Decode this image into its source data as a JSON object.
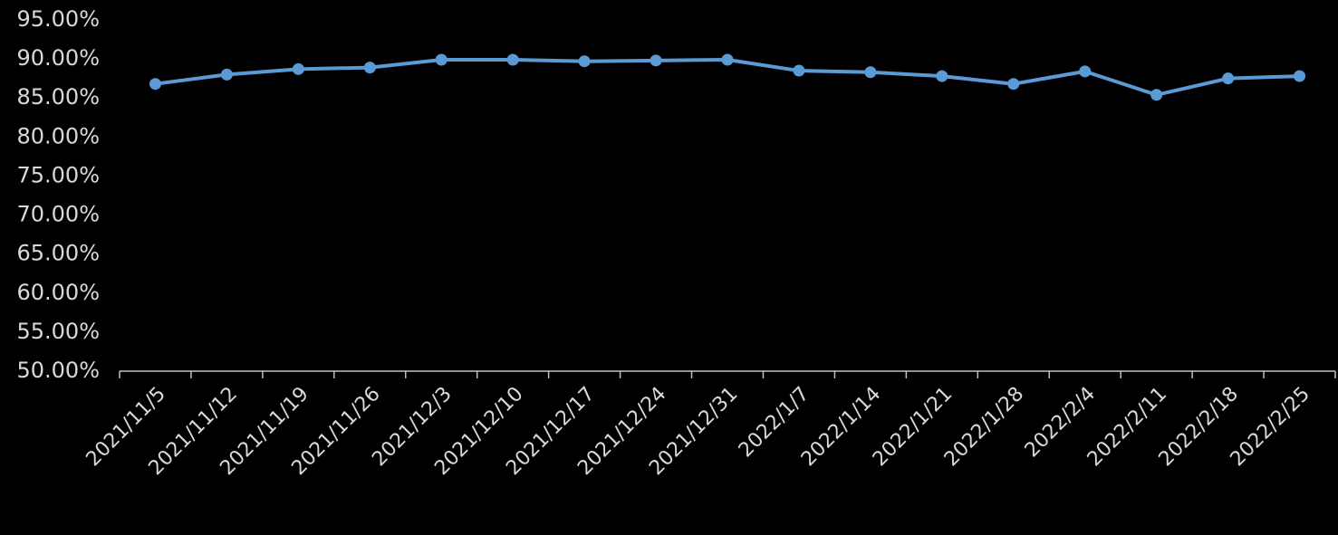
{
  "chart_data": {
    "type": "line",
    "categories": [
      "2021/11/5",
      "2021/11/12",
      "2021/11/19",
      "2021/11/26",
      "2021/12/3",
      "2021/12/10",
      "2021/12/17",
      "2021/12/24",
      "2021/12/31",
      "2022/1/7",
      "2022/1/14",
      "2022/1/21",
      "2022/1/28",
      "2022/2/4",
      "2022/2/11",
      "2022/2/18",
      "2022/2/25"
    ],
    "values": [
      86.8,
      88.0,
      88.7,
      88.9,
      89.9,
      89.9,
      89.7,
      89.8,
      89.9,
      88.5,
      88.3,
      87.8,
      86.8,
      88.4,
      85.4,
      87.5,
      87.8
    ],
    "color": "#5b9bd5",
    "ylim": [
      50,
      95
    ],
    "yticks": [
      {
        "value": 50,
        "label": "50.00%"
      },
      {
        "value": 55,
        "label": "55.00%"
      },
      {
        "value": 60,
        "label": "60.00%"
      },
      {
        "value": 65,
        "label": "65.00%"
      },
      {
        "value": 70,
        "label": "70.00%"
      },
      {
        "value": 75,
        "label": "75.00%"
      },
      {
        "value": 80,
        "label": "80.00%"
      },
      {
        "value": 85,
        "label": "85.00%"
      },
      {
        "value": 90,
        "label": "90.00%"
      },
      {
        "value": 95,
        "label": "95.00%"
      }
    ],
    "grid": false
  }
}
